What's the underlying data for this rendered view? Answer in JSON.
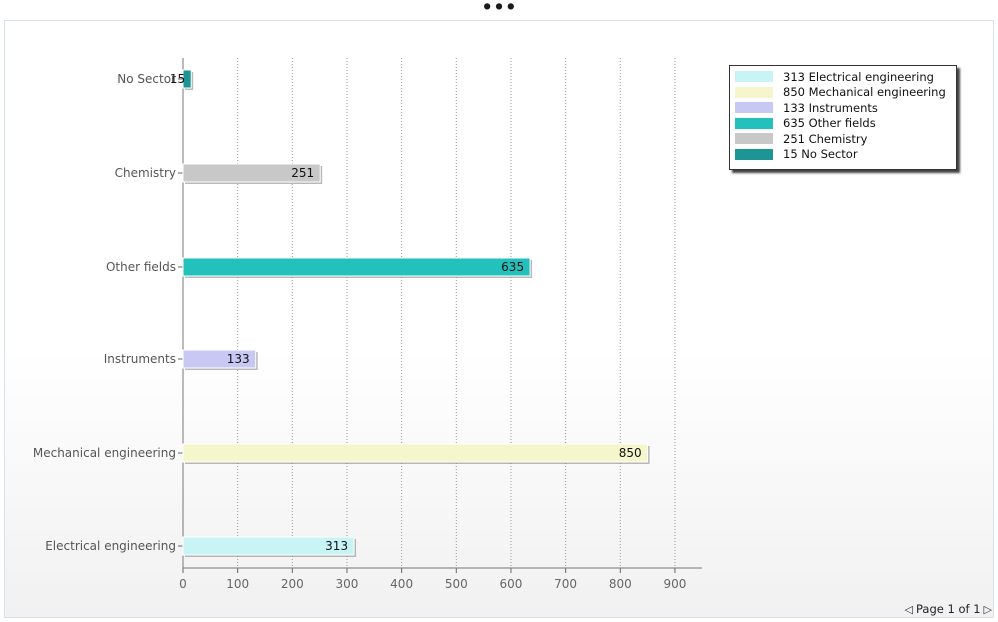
{
  "title": "...",
  "chart_data": {
    "type": "bar",
    "orientation": "horizontal",
    "categories": [
      "Electrical engineering",
      "Mechanical engineering",
      "Instruments",
      "Other fields",
      "Chemistry",
      "No Sector"
    ],
    "values": [
      313,
      850,
      133,
      635,
      251,
      15
    ],
    "value_labels": [
      "313",
      "850",
      "133",
      "635",
      "251",
      "15"
    ],
    "colors": [
      "#c8f4f6",
      "#f6f6cc",
      "#c8c8f4",
      "#24c0bc",
      "#c8c8c8",
      "#1e9595"
    ],
    "xlim": [
      0,
      950
    ],
    "xticks": [
      0,
      100,
      200,
      300,
      400,
      500,
      600,
      700,
      800,
      900
    ],
    "xtick_labels": [
      "0",
      "100",
      "200",
      "300",
      "400",
      "500",
      "600",
      "700",
      "800",
      "900"
    ],
    "grid": "vertical dotted",
    "legend_position": "top-right",
    "xlabel": "",
    "ylabel": ""
  },
  "legend": {
    "entries": [
      {
        "text": "313 Electrical engineering",
        "color": "#c8f4f6"
      },
      {
        "text": "850 Mechanical engineering",
        "color": "#f6f6cc"
      },
      {
        "text": "133 Instruments",
        "color": "#c8c8f4"
      },
      {
        "text": "635 Other fields",
        "color": "#24c0bc"
      },
      {
        "text": "251 Chemistry",
        "color": "#c8c8c8"
      },
      {
        "text": "15 No Sector",
        "color": "#1e9595"
      }
    ]
  },
  "pager": {
    "prev_icon": "triangle-left",
    "label": "Page 1 of 1",
    "next_icon": "triangle-right"
  }
}
